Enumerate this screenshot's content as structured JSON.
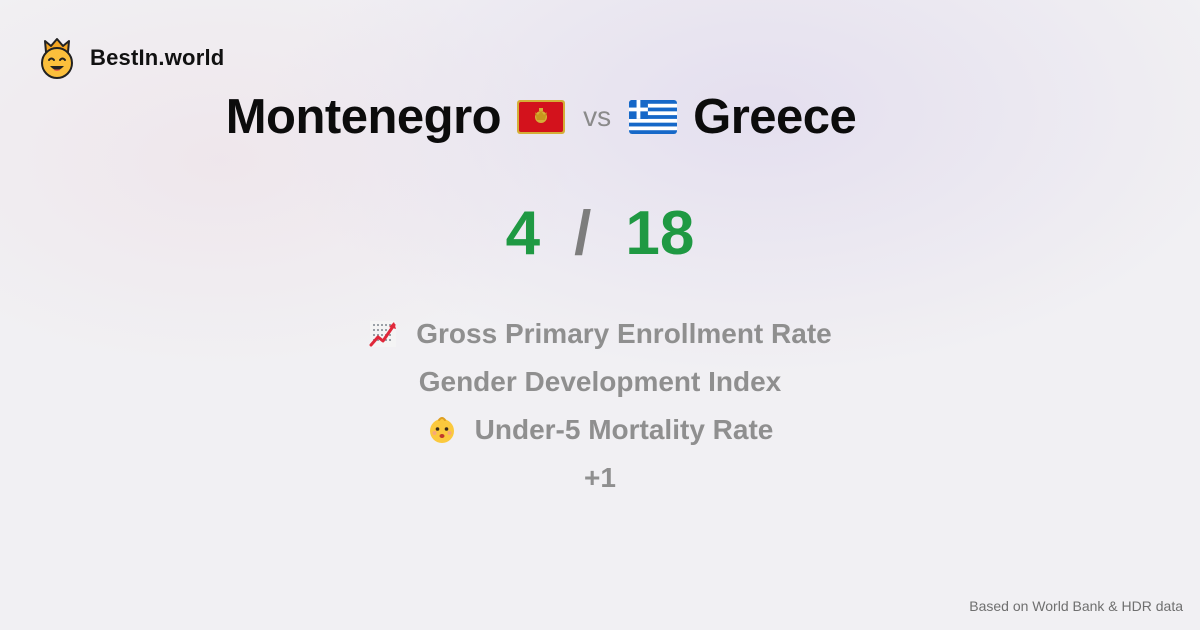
{
  "brand": {
    "name": "BestIn.world",
    "logo_icon": "smiling-crown-face-icon"
  },
  "comparison": {
    "country_a": {
      "name": "Montenegro",
      "flag_icon": "montenegro-flag-icon"
    },
    "vs_label": "vs",
    "country_b": {
      "name": "Greece",
      "flag_icon": "greece-flag-icon"
    }
  },
  "score": {
    "a": "4",
    "separator": "/",
    "b": "18"
  },
  "metrics": [
    {
      "label": "Gross Primary Enrollment Rate",
      "icon": "chart-increasing-icon"
    },
    {
      "label": "Gender Development Index",
      "icon": ""
    },
    {
      "label": "Under-5 Mortality Rate",
      "icon": "baby-icon"
    }
  ],
  "more_label": "+1",
  "footer": {
    "source": "Based on World Bank & HDR data"
  },
  "colors": {
    "score": "#1f9943",
    "muted": "#8f8f8f",
    "title": "#0c0c0c"
  }
}
